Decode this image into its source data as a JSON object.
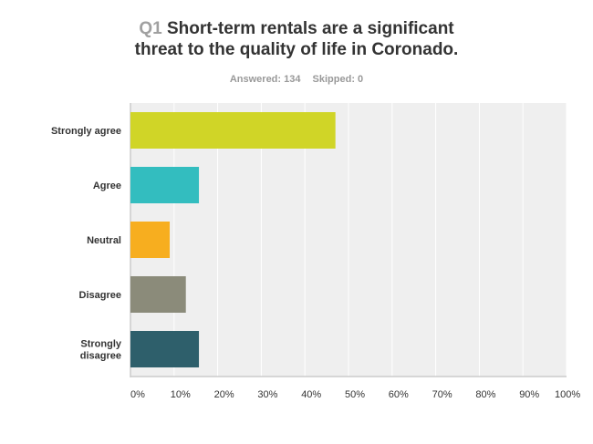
{
  "header": {
    "question_number": "Q1",
    "question_line1": "Short-term rentals are a significant",
    "question_line2": "threat to the quality of life in Coronado.",
    "answered": "Answered: 134",
    "skipped": "Skipped: 0"
  },
  "chart_data": {
    "type": "bar",
    "orientation": "horizontal",
    "title": "Short-term rentals are a significant threat to the quality of life in Coronado.",
    "categories": [
      "Strongly agree",
      "Agree",
      "Neutral",
      "Disagree",
      "Strongly disagree"
    ],
    "category_lines": [
      [
        "Strongly agree"
      ],
      [
        "Agree"
      ],
      [
        "Neutral"
      ],
      [
        "Disagree"
      ],
      [
        "Strongly",
        "disagree"
      ]
    ],
    "values": [
      47.0,
      15.7,
      9.0,
      12.7,
      15.7
    ],
    "colors": [
      "#d0d527",
      "#33bdbf",
      "#f7ae1f",
      "#8b8b7a",
      "#2e5f6b"
    ],
    "xlabel": "",
    "ylabel": "",
    "xlim": [
      0,
      100
    ],
    "xticks": [
      "0%",
      "10%",
      "20%",
      "30%",
      "40%",
      "50%",
      "60%",
      "70%",
      "80%",
      "90%",
      "100%"
    ],
    "grid": true
  }
}
